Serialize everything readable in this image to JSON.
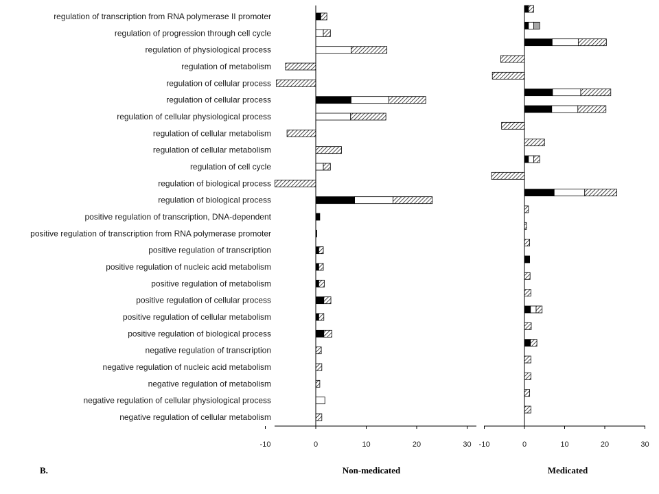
{
  "panel_label": "B.",
  "chart_data": {
    "type": "bar",
    "orientation": "horizontal",
    "stacked": true,
    "grid": false,
    "xlim": [
      -10,
      30
    ],
    "xticks": [
      -10,
      0,
      10,
      20,
      30
    ],
    "segment_fills": {
      "black": "#000000",
      "white": "#ffffff",
      "gray": "#a6a6a6",
      "hatched": "diagonal-hatch"
    },
    "categories": [
      "regulation of transcription from RNA polymerase II promoter",
      "regulation of progression through cell cycle",
      "regulation of physiological process",
      "regulation of metabolism",
      "regulation of cellular process",
      "regulation of cellular process",
      "regulation of cellular physiological process",
      "regulation of cellular metabolism",
      "regulation of cellular metabolism",
      "regulation of cell cycle",
      "regulation of biological process",
      "regulation of biological process",
      "positive regulation of transcription, DNA-dependent",
      "positive regulation of transcription from RNA polymerase promoter",
      "positive regulation of transcription",
      "positive regulation of nucleic acid metabolism",
      "positive regulation of metabolism",
      "positive regulation of cellular process",
      "positive regulation of cellular metabolism",
      "positive regulation of biological process",
      "negative regulation of transcription",
      "negative regulation of nucleic acid metabolism",
      "negative regulation of metabolism",
      "negative regulation of cellular physiological process",
      "negative regulation of cellular metabolism"
    ],
    "panels": [
      {
        "title": "Non-medicated",
        "bars": [
          [
            {
              "fill": "black",
              "value": 1.0
            },
            {
              "fill": "hatched",
              "value": 1.2
            }
          ],
          [
            {
              "fill": "white",
              "value": 1.5
            },
            {
              "fill": "hatched",
              "value": 1.4
            }
          ],
          [
            {
              "fill": "white",
              "value": 7.0
            },
            {
              "fill": "hatched",
              "value": 7.1
            }
          ],
          [
            {
              "fill": "hatched",
              "value": -6.0
            }
          ],
          [
            {
              "fill": "hatched",
              "value": -7.8
            }
          ],
          [
            {
              "fill": "black",
              "value": 7.0
            },
            {
              "fill": "white",
              "value": 7.5
            },
            {
              "fill": "hatched",
              "value": 7.3
            }
          ],
          [
            {
              "fill": "white",
              "value": 6.9
            },
            {
              "fill": "hatched",
              "value": 7.0
            }
          ],
          [
            {
              "fill": "hatched",
              "value": -5.7
            }
          ],
          [
            {
              "fill": "hatched",
              "value": 5.1
            }
          ],
          [
            {
              "fill": "white",
              "value": 1.5
            },
            {
              "fill": "hatched",
              "value": 1.4
            }
          ],
          [
            {
              "fill": "hatched",
              "value": -8.1
            }
          ],
          [
            {
              "fill": "black",
              "value": 7.7
            },
            {
              "fill": "white",
              "value": 7.6
            },
            {
              "fill": "hatched",
              "value": 7.8
            }
          ],
          [
            {
              "fill": "black",
              "value": 0.8
            }
          ],
          [
            {
              "fill": "black",
              "value": 0.2
            }
          ],
          [
            {
              "fill": "black",
              "value": 0.6
            },
            {
              "fill": "hatched",
              "value": 0.9
            }
          ],
          [
            {
              "fill": "black",
              "value": 0.6
            },
            {
              "fill": "hatched",
              "value": 0.9
            }
          ],
          [
            {
              "fill": "black",
              "value": 0.6
            },
            {
              "fill": "hatched",
              "value": 1.1
            }
          ],
          [
            {
              "fill": "black",
              "value": 1.6
            },
            {
              "fill": "hatched",
              "value": 1.4
            }
          ],
          [
            {
              "fill": "black",
              "value": 0.6
            },
            {
              "fill": "hatched",
              "value": 1.0
            }
          ],
          [
            {
              "fill": "black",
              "value": 1.6
            },
            {
              "fill": "hatched",
              "value": 1.6
            }
          ],
          [
            {
              "fill": "hatched",
              "value": 1.1
            }
          ],
          [
            {
              "fill": "hatched",
              "value": 1.2
            }
          ],
          [
            {
              "fill": "hatched",
              "value": 0.8
            }
          ],
          [
            {
              "fill": "white",
              "value": 1.8
            }
          ],
          [
            {
              "fill": "hatched",
              "value": 1.2
            }
          ]
        ]
      },
      {
        "title": "Medicated",
        "bars": [
          [
            {
              "fill": "black",
              "value": 1.0
            },
            {
              "fill": "hatched",
              "value": 1.3
            }
          ],
          [
            {
              "fill": "black",
              "value": 1.0
            },
            {
              "fill": "white",
              "value": 1.3
            },
            {
              "fill": "gray",
              "value": 1.5
            }
          ],
          [
            {
              "fill": "black",
              "value": 6.9
            },
            {
              "fill": "white",
              "value": 6.5
            },
            {
              "fill": "hatched",
              "value": 7.0
            }
          ],
          [
            {
              "fill": "hatched",
              "value": -5.9
            }
          ],
          [
            {
              "fill": "hatched",
              "value": -8.0
            }
          ],
          [
            {
              "fill": "black",
              "value": 7.0
            },
            {
              "fill": "white",
              "value": 7.0
            },
            {
              "fill": "hatched",
              "value": 7.5
            }
          ],
          [
            {
              "fill": "black",
              "value": 6.8
            },
            {
              "fill": "white",
              "value": 6.5
            },
            {
              "fill": "hatched",
              "value": 7.0
            }
          ],
          [
            {
              "fill": "hatched",
              "value": -5.7
            }
          ],
          [
            {
              "fill": "hatched",
              "value": 5.0
            }
          ],
          [
            {
              "fill": "black",
              "value": 1.0
            },
            {
              "fill": "white",
              "value": 1.3
            },
            {
              "fill": "hatched",
              "value": 1.5
            }
          ],
          [
            {
              "fill": "hatched",
              "value": -8.2
            }
          ],
          [
            {
              "fill": "black",
              "value": 7.4
            },
            {
              "fill": "white",
              "value": 7.6
            },
            {
              "fill": "hatched",
              "value": 8.0
            }
          ],
          [
            {
              "fill": "hatched",
              "value": 1.0
            }
          ],
          [
            {
              "fill": "hatched",
              "value": 0.5
            }
          ],
          [
            {
              "fill": "hatched",
              "value": 1.3
            }
          ],
          [
            {
              "fill": "black",
              "value": 1.3
            }
          ],
          [
            {
              "fill": "hatched",
              "value": 1.4
            }
          ],
          [
            {
              "fill": "hatched",
              "value": 1.6
            }
          ],
          [
            {
              "fill": "black",
              "value": 1.5
            },
            {
              "fill": "white",
              "value": 1.4
            },
            {
              "fill": "hatched",
              "value": 1.5
            }
          ],
          [
            {
              "fill": "hatched",
              "value": 1.7
            }
          ],
          [
            {
              "fill": "black",
              "value": 1.5
            },
            {
              "fill": "hatched",
              "value": 1.6
            }
          ],
          [
            {
              "fill": "hatched",
              "value": 1.6
            }
          ],
          [
            {
              "fill": "hatched",
              "value": 1.6
            }
          ],
          [
            {
              "fill": "hatched",
              "value": 1.3
            }
          ],
          [
            {
              "fill": "hatched",
              "value": 1.6
            }
          ]
        ]
      }
    ]
  }
}
